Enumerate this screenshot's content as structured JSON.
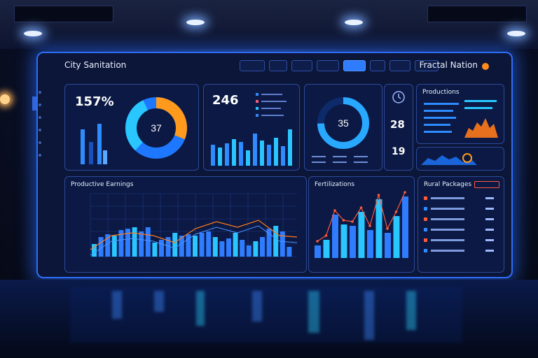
{
  "header": {
    "title": "City Sanitation",
    "title_right": "Fractal Nation",
    "tabs": [
      "",
      "",
      "",
      "",
      "",
      "",
      "",
      ""
    ],
    "active_tab": 4
  },
  "kpi1": {
    "value": "157%",
    "sub": "",
    "donut_value": "37"
  },
  "kpi2": {
    "value": "246",
    "legend": [
      "",
      "",
      "",
      ""
    ]
  },
  "kpi3": {
    "donut_value": "35",
    "stat1": "28",
    "stat2": "19"
  },
  "productions": {
    "title": "Productions"
  },
  "main_chart": {
    "title": "Productive Earnings",
    "y_ticks": [
      "",
      "",
      "",
      "",
      "",
      ""
    ],
    "x_ticks": [
      "",
      "",
      "",
      "",
      "",
      ""
    ]
  },
  "bar_chart": {
    "title": "Fertilizations",
    "x_ticks": [
      "",
      "",
      ""
    ]
  },
  "list_panel": {
    "title": "Rural Packages",
    "rows": 6
  },
  "colors": {
    "accent": "#2f7cff",
    "orange": "#ff9a1c",
    "cyan": "#29c6ff",
    "bar": "#3a86ff"
  }
}
